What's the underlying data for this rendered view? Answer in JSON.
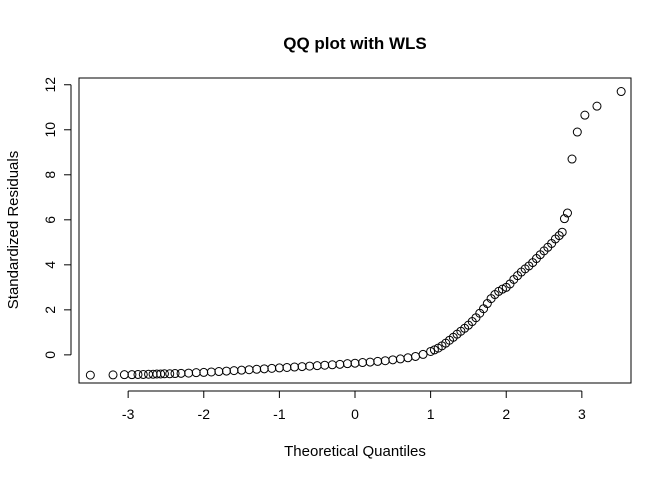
{
  "chart_data": {
    "type": "scatter",
    "title": "QQ plot with WLS",
    "xlabel": "Theoretical Quantiles",
    "ylabel": "Standardized Residuals",
    "xlim": [
      -3.65,
      3.65
    ],
    "ylim": [
      -1.25,
      12.3
    ],
    "x_ticks": [
      -3,
      -2,
      -1,
      0,
      1,
      2,
      3
    ],
    "y_ticks": [
      0,
      2,
      4,
      6,
      8,
      10,
      12
    ],
    "grid": false,
    "legend": "none",
    "marker": "open-circle",
    "marker_color": "#000000",
    "points": [
      {
        "x": -3.5,
        "y": -0.9
      },
      {
        "x": -3.2,
        "y": -0.89
      },
      {
        "x": -3.05,
        "y": -0.88
      },
      {
        "x": -2.95,
        "y": -0.88
      },
      {
        "x": -2.87,
        "y": -0.87
      },
      {
        "x": -2.8,
        "y": -0.87
      },
      {
        "x": -2.73,
        "y": -0.86
      },
      {
        "x": -2.67,
        "y": -0.86
      },
      {
        "x": -2.62,
        "y": -0.85
      },
      {
        "x": -2.57,
        "y": -0.85
      },
      {
        "x": -2.52,
        "y": -0.84
      },
      {
        "x": -2.45,
        "y": -0.84
      },
      {
        "x": -2.38,
        "y": -0.83
      },
      {
        "x": -2.3,
        "y": -0.82
      },
      {
        "x": -2.2,
        "y": -0.81
      },
      {
        "x": -2.1,
        "y": -0.79
      },
      {
        "x": -2.0,
        "y": -0.78
      },
      {
        "x": -1.9,
        "y": -0.76
      },
      {
        "x": -1.8,
        "y": -0.74
      },
      {
        "x": -1.7,
        "y": -0.72
      },
      {
        "x": -1.6,
        "y": -0.7
      },
      {
        "x": -1.5,
        "y": -0.68
      },
      {
        "x": -1.4,
        "y": -0.66
      },
      {
        "x": -1.3,
        "y": -0.64
      },
      {
        "x": -1.2,
        "y": -0.62
      },
      {
        "x": -1.1,
        "y": -0.6
      },
      {
        "x": -1.0,
        "y": -0.58
      },
      {
        "x": -0.9,
        "y": -0.56
      },
      {
        "x": -0.8,
        "y": -0.54
      },
      {
        "x": -0.7,
        "y": -0.52
      },
      {
        "x": -0.6,
        "y": -0.5
      },
      {
        "x": -0.5,
        "y": -0.48
      },
      {
        "x": -0.4,
        "y": -0.46
      },
      {
        "x": -0.3,
        "y": -0.44
      },
      {
        "x": -0.2,
        "y": -0.42
      },
      {
        "x": -0.1,
        "y": -0.39
      },
      {
        "x": 0.0,
        "y": -0.37
      },
      {
        "x": 0.1,
        "y": -0.34
      },
      {
        "x": 0.2,
        "y": -0.32
      },
      {
        "x": 0.3,
        "y": -0.29
      },
      {
        "x": 0.4,
        "y": -0.26
      },
      {
        "x": 0.5,
        "y": -0.22
      },
      {
        "x": 0.6,
        "y": -0.18
      },
      {
        "x": 0.7,
        "y": -0.13
      },
      {
        "x": 0.8,
        "y": -0.07
      },
      {
        "x": 0.9,
        "y": 0.02
      },
      {
        "x": 1.0,
        "y": 0.15
      },
      {
        "x": 1.05,
        "y": 0.22
      },
      {
        "x": 1.1,
        "y": 0.3
      },
      {
        "x": 1.15,
        "y": 0.4
      },
      {
        "x": 1.2,
        "y": 0.52
      },
      {
        "x": 1.25,
        "y": 0.65
      },
      {
        "x": 1.3,
        "y": 0.78
      },
      {
        "x": 1.35,
        "y": 0.92
      },
      {
        "x": 1.4,
        "y": 1.05
      },
      {
        "x": 1.45,
        "y": 1.18
      },
      {
        "x": 1.5,
        "y": 1.32
      },
      {
        "x": 1.55,
        "y": 1.48
      },
      {
        "x": 1.6,
        "y": 1.65
      },
      {
        "x": 1.65,
        "y": 1.85
      },
      {
        "x": 1.7,
        "y": 2.05
      },
      {
        "x": 1.75,
        "y": 2.28
      },
      {
        "x": 1.8,
        "y": 2.5
      },
      {
        "x": 1.85,
        "y": 2.68
      },
      {
        "x": 1.9,
        "y": 2.82
      },
      {
        "x": 1.95,
        "y": 2.92
      },
      {
        "x": 2.0,
        "y": 3.0
      },
      {
        "x": 2.05,
        "y": 3.15
      },
      {
        "x": 2.1,
        "y": 3.35
      },
      {
        "x": 2.15,
        "y": 3.52
      },
      {
        "x": 2.2,
        "y": 3.68
      },
      {
        "x": 2.25,
        "y": 3.82
      },
      {
        "x": 2.3,
        "y": 3.95
      },
      {
        "x": 2.35,
        "y": 4.1
      },
      {
        "x": 2.4,
        "y": 4.28
      },
      {
        "x": 2.45,
        "y": 4.45
      },
      {
        "x": 2.5,
        "y": 4.62
      },
      {
        "x": 2.55,
        "y": 4.78
      },
      {
        "x": 2.6,
        "y": 4.95
      },
      {
        "x": 2.65,
        "y": 5.15
      },
      {
        "x": 2.7,
        "y": 5.3
      },
      {
        "x": 2.74,
        "y": 5.45
      },
      {
        "x": 2.77,
        "y": 6.05
      },
      {
        "x": 2.81,
        "y": 6.3
      },
      {
        "x": 2.87,
        "y": 8.7
      },
      {
        "x": 2.94,
        "y": 9.9
      },
      {
        "x": 3.04,
        "y": 10.65
      },
      {
        "x": 3.2,
        "y": 11.05
      },
      {
        "x": 3.52,
        "y": 11.7
      }
    ]
  }
}
